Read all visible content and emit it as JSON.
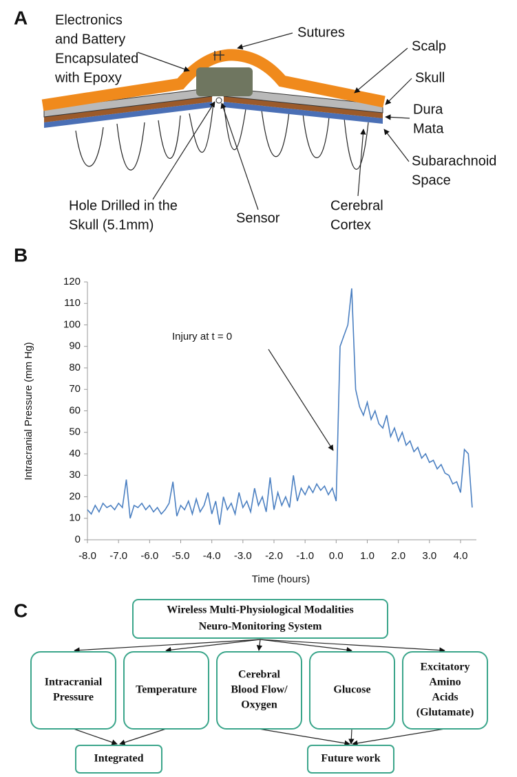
{
  "panel_a": {
    "label": "A",
    "labels": [
      {
        "lines": [
          "Electronics",
          "and Battery",
          "Encapsulated",
          "with Epoxy"
        ]
      },
      {
        "lines": [
          "Sutures"
        ]
      },
      {
        "lines": [
          "Scalp"
        ]
      },
      {
        "lines": [
          "Skull"
        ]
      },
      {
        "lines": [
          "Dura",
          "Mata"
        ]
      },
      {
        "lines": [
          "Subarachnoid",
          "Space"
        ]
      },
      {
        "lines": [
          "Hole Drilled in the",
          "Skull (5.1mm)"
        ]
      },
      {
        "lines": [
          "Sensor"
        ]
      },
      {
        "lines": [
          "Cerebral",
          "Cortex"
        ]
      }
    ]
  },
  "panel_b_label": "B",
  "chart_data": {
    "type": "line",
    "xlabel": "Time (hours)",
    "ylabel": "Intracranial Pressure (mm Hg)",
    "annotation": "Injury at t = 0",
    "color": "#4a7fc1",
    "xlim": [
      -8,
      4.5
    ],
    "ylim": [
      0,
      120
    ],
    "xticks": [
      {
        "value": -8,
        "label": "-8.0"
      },
      {
        "value": -7,
        "label": "-7.0"
      },
      {
        "value": -6,
        "label": "-6.0"
      },
      {
        "value": -5,
        "label": "-5.0"
      },
      {
        "value": -4,
        "label": "-4.0"
      },
      {
        "value": -3,
        "label": "-3.0"
      },
      {
        "value": -2,
        "label": "-2.0"
      },
      {
        "value": -1,
        "label": "-1.0"
      },
      {
        "value": 0,
        "label": "0.0"
      },
      {
        "value": 1,
        "label": "1.0"
      },
      {
        "value": 2,
        "label": "2.0"
      },
      {
        "value": 3,
        "label": "3.0"
      },
      {
        "value": 4,
        "label": "4.0"
      }
    ],
    "yticks": [
      0,
      10,
      20,
      30,
      40,
      50,
      60,
      70,
      80,
      90,
      100,
      110,
      120
    ],
    "x": [
      -8,
      -7.875,
      -7.75,
      -7.625,
      -7.5,
      -7.375,
      -7.25,
      -7.125,
      -7,
      -6.875,
      -6.75,
      -6.625,
      -6.5,
      -6.375,
      -6.25,
      -6.125,
      -6,
      -5.875,
      -5.75,
      -5.625,
      -5.5,
      -5.375,
      -5.25,
      -5.125,
      -5,
      -4.875,
      -4.75,
      -4.625,
      -4.5,
      -4.375,
      -4.25,
      -4.125,
      -4,
      -3.875,
      -3.75,
      -3.625,
      -3.5,
      -3.375,
      -3.25,
      -3.125,
      -3,
      -2.875,
      -2.75,
      -2.625,
      -2.5,
      -2.375,
      -2.25,
      -2.125,
      -2,
      -1.875,
      -1.75,
      -1.625,
      -1.5,
      -1.375,
      -1.25,
      -1.125,
      -1,
      -0.875,
      -0.75,
      -0.625,
      -0.5,
      -0.375,
      -0.25,
      -0.125,
      0,
      0.125,
      0.25,
      0.375,
      0.5,
      0.625,
      0.75,
      0.875,
      1,
      1.125,
      1.25,
      1.375,
      1.5,
      1.625,
      1.75,
      1.875,
      2,
      2.125,
      2.25,
      2.375,
      2.5,
      2.625,
      2.75,
      2.875,
      3,
      3.125,
      3.25,
      3.375,
      3.5,
      3.625,
      3.75,
      3.875,
      4,
      4.125,
      4.25,
      4.375
    ],
    "values": [
      14,
      12,
      16,
      13,
      17,
      15,
      16,
      14,
      17,
      15,
      28,
      10,
      16,
      15,
      17,
      14,
      16,
      13,
      15,
      12,
      14,
      17,
      27,
      11,
      16,
      14,
      18,
      12,
      19,
      13,
      16,
      22,
      12,
      18,
      7,
      20,
      14,
      17,
      12,
      22,
      15,
      18,
      13,
      24,
      16,
      20,
      13,
      29,
      14,
      22,
      16,
      20,
      15,
      30,
      18,
      24,
      21,
      25,
      22,
      26,
      23,
      25,
      21,
      24,
      18,
      90,
      95,
      100,
      117,
      70,
      62,
      58,
      64,
      56,
      60,
      54,
      52,
      58,
      48,
      52,
      46,
      50,
      44,
      46,
      41,
      43,
      38,
      40,
      36,
      37,
      33,
      35,
      31,
      30,
      26,
      27,
      22,
      42,
      40,
      15
    ]
  },
  "panel_c": {
    "label": "C",
    "title": [
      "Wireless Multi-Physiological Modalities",
      "Neuro-Monitoring System"
    ],
    "boxes": [
      {
        "lines": [
          "Intracranial",
          "Pressure"
        ]
      },
      {
        "lines": [
          "Temperature"
        ]
      },
      {
        "lines": [
          "Cerebral",
          "Blood Flow/",
          "Oxygen"
        ]
      },
      {
        "lines": [
          "Glucose"
        ]
      },
      {
        "lines": [
          "Excitatory",
          "Amino",
          "Acids",
          "(Glutamate)"
        ]
      }
    ],
    "outcomes": [
      "Integrated",
      "Future work"
    ]
  }
}
